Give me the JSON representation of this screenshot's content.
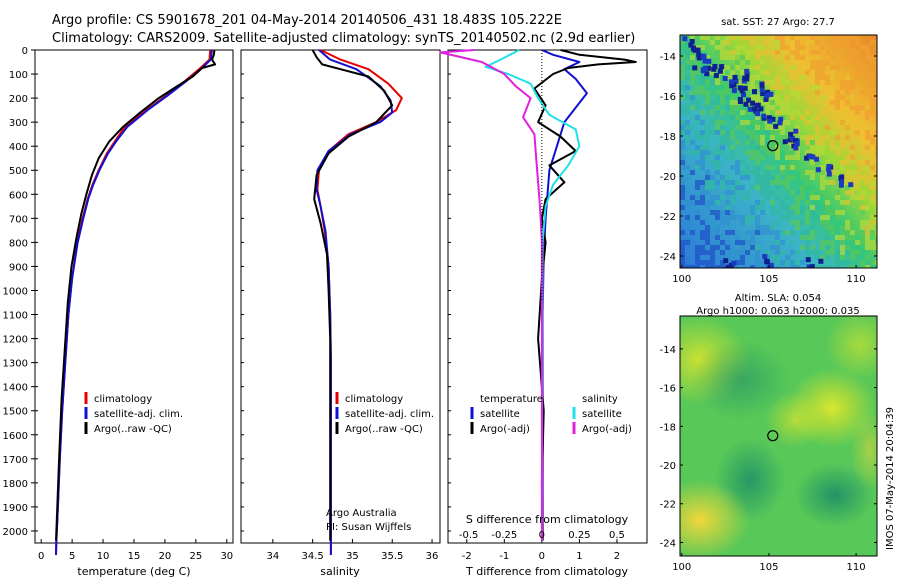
{
  "header": {
    "line1": "Argo profile: CS 5901678_201 04-May-2014 20140506_431 18.483S 105.222E",
    "line2": "Climatology: CARS2009. Satellite-adjusted climatology: synTS_20140502.nc (2.9d earlier)"
  },
  "colors": {
    "climatology": "#e60000",
    "satellite": "#1010d0",
    "argo": "#000000",
    "cyan": "#20e0e8",
    "magenta": "#e020e0"
  },
  "depth_axis": {
    "ticks": [
      0,
      100,
      200,
      300,
      400,
      500,
      600,
      700,
      800,
      900,
      1000,
      1100,
      1200,
      1300,
      1400,
      1500,
      1600,
      1700,
      1800,
      1900,
      2000
    ],
    "range": [
      0,
      2050
    ]
  },
  "chart_data": [
    {
      "type": "line",
      "id": "temperature",
      "xlabel": "temperature (deg C)",
      "xlim": [
        -1,
        31
      ],
      "ylim": [
        2050,
        0
      ],
      "xticks": [
        "0",
        "5",
        "10",
        "15",
        "20",
        "25",
        "30"
      ],
      "xtick_values": [
        0,
        5,
        10,
        15,
        20,
        25,
        30
      ],
      "legend": [
        "climatology",
        "satellite-adj. clim.",
        "Argo(..raw -QC)"
      ],
      "series": [
        {
          "name": "climatology",
          "color": "#e60000",
          "x": [
            27.3,
            27.2,
            25.5,
            23.2,
            20.2,
            17.0,
            13.5,
            11.9,
            10.6,
            9.3,
            8.3,
            7.5,
            6.7,
            5.8,
            5.0,
            4.4,
            3.9,
            3.4,
            3.0,
            2.7,
            2.45,
            2.4
          ],
          "y": [
            0,
            40,
            80,
            130,
            190,
            250,
            320,
            380,
            430,
            500,
            560,
            620,
            700,
            800,
            950,
            1100,
            1300,
            1500,
            1700,
            1900,
            2050,
            2100
          ]
        },
        {
          "name": "satellite-adj. clim.",
          "color": "#1010d0",
          "x": [
            27.6,
            27.4,
            25.8,
            23.4,
            20.4,
            17.2,
            13.9,
            12.1,
            10.8,
            9.4,
            8.4,
            7.6,
            6.8,
            5.9,
            5.0,
            4.4,
            3.9,
            3.4,
            3.0,
            2.7,
            2.45,
            2.4
          ],
          "y": [
            0,
            40,
            80,
            130,
            190,
            250,
            320,
            380,
            430,
            500,
            560,
            620,
            700,
            800,
            950,
            1100,
            1300,
            1500,
            1700,
            1900,
            2050,
            2100
          ]
        },
        {
          "name": "Argo(..raw -QC)",
          "color": "#000000",
          "x": [
            28.0,
            27.9,
            27.6,
            28.1,
            26.0,
            24.5,
            22.0,
            19.0,
            16.0,
            13.2,
            11.0,
            9.3,
            8.2,
            7.3,
            6.5,
            5.7,
            4.9,
            4.3,
            3.8,
            3.3,
            2.9,
            2.6,
            2.4
          ],
          "y": [
            2,
            20,
            40,
            60,
            75,
            110,
            150,
            200,
            260,
            320,
            380,
            450,
            520,
            600,
            680,
            780,
            900,
            1050,
            1250,
            1450,
            1700,
            1900,
            2040
          ]
        }
      ]
    },
    {
      "type": "line",
      "id": "salinity",
      "xlabel": "salinity",
      "xlim": [
        33.6,
        36.1
      ],
      "ylim": [
        2050,
        0
      ],
      "xticks": [
        "34",
        "34.5",
        "35",
        "35.5",
        "36"
      ],
      "xtick_values": [
        34,
        34.5,
        35,
        35.5,
        36
      ],
      "legend": [
        "climatology",
        "satellite-adj. clim.",
        "Argo(..raw -QC)"
      ],
      "annotation": [
        "Argo Australia",
        "PI: Susan Wijffels"
      ],
      "series": [
        {
          "name": "climatology",
          "color": "#e60000",
          "x": [
            34.6,
            34.85,
            35.2,
            35.45,
            35.62,
            35.55,
            35.3,
            34.95,
            34.7,
            34.58,
            34.56,
            34.6,
            34.65,
            34.7,
            34.72,
            34.73,
            34.73,
            34.73,
            34.73,
            34.73
          ],
          "y": [
            0,
            40,
            80,
            140,
            200,
            250,
            300,
            350,
            420,
            500,
            580,
            650,
            750,
            900,
            1100,
            1300,
            1500,
            1700,
            1900,
            2100
          ]
        },
        {
          "name": "satellite-adj. clim.",
          "color": "#1010d0",
          "x": [
            34.58,
            34.72,
            35.05,
            35.35,
            35.48,
            35.5,
            35.35,
            34.98,
            34.7,
            34.56,
            34.55,
            34.6,
            34.66,
            34.7,
            34.72,
            34.73,
            34.73,
            34.73,
            34.73,
            34.73
          ],
          "y": [
            0,
            40,
            80,
            150,
            210,
            260,
            300,
            350,
            420,
            500,
            580,
            650,
            750,
            900,
            1100,
            1300,
            1500,
            1700,
            1900,
            2100
          ]
        },
        {
          "name": "Argo(..raw -QC)",
          "color": "#000000",
          "x": [
            34.5,
            34.55,
            34.62,
            34.85,
            35.2,
            35.4,
            35.5,
            35.3,
            34.95,
            34.7,
            34.55,
            34.52,
            34.6,
            34.68,
            34.7,
            34.72,
            34.72,
            34.72,
            34.72
          ],
          "y": [
            0,
            30,
            60,
            80,
            110,
            170,
            230,
            300,
            360,
            430,
            520,
            620,
            720,
            850,
            1000,
            1200,
            1400,
            1700,
            2040
          ]
        }
      ]
    },
    {
      "type": "line",
      "id": "difference",
      "xlabel": "T difference from climatology",
      "xlabel_top": "S difference from climatology",
      "xlim": [
        -2.5,
        2.8
      ],
      "ylim": [
        2050,
        0
      ],
      "xticks": [
        "-2",
        "-1",
        "0",
        "1",
        "2"
      ],
      "xtick_values": [
        -2,
        -1,
        0,
        1,
        2
      ],
      "s_ticks": [
        "-0.5",
        "-0.25",
        "0",
        "0.25",
        "0.5"
      ],
      "s_tick_values": [
        -1.95,
        -1.0,
        0,
        1.0,
        2.0
      ],
      "legend_left": [
        "temperature",
        "satellite",
        "Argo(-adj)"
      ],
      "legend_right": [
        "salinity",
        "satellite",
        "Argo(-adj)"
      ],
      "series": [
        {
          "name": "temperature satellite",
          "color": "#1010d0",
          "x": [
            0,
            0.3,
            1.0,
            0.6,
            0.9,
            1.2,
            1.0,
            0.6,
            0.4,
            0.2,
            0.15,
            0.1,
            0.05,
            0.02,
            0.02,
            0.02
          ],
          "y": [
            0,
            20,
            50,
            80,
            120,
            180,
            220,
            300,
            400,
            500,
            600,
            700,
            850,
            1100,
            1500,
            2040
          ]
        },
        {
          "name": "temperature Argo(-adj)",
          "color": "#000000",
          "x": [
            0.5,
            1.0,
            2.2,
            2.5,
            1.5,
            0.7,
            0.3,
            -0.2,
            0.1,
            -0.1,
            0.5,
            0.9,
            0.2,
            0.6,
            0.1,
            0.0,
            0.1,
            0.0,
            -0.1,
            0.05,
            0.0,
            0.02
          ],
          "y": [
            0,
            20,
            40,
            50,
            60,
            75,
            100,
            160,
            230,
            300,
            360,
            420,
            480,
            550,
            620,
            700,
            800,
            950,
            1200,
            1500,
            1800,
            2040
          ]
        },
        {
          "name": "salinity satellite",
          "color": "#20e0e8",
          "x": [
            -0.6,
            -1.1,
            -1.5,
            -0.9,
            -0.3,
            -0.1,
            0.2,
            0.9,
            1.0,
            0.7,
            0.3,
            0.1,
            0.02,
            0.01,
            0.0
          ],
          "y": [
            0,
            40,
            70,
            100,
            140,
            200,
            270,
            330,
            400,
            480,
            560,
            650,
            800,
            1200,
            2040
          ]
        },
        {
          "name": "salinity Argo(-adj)",
          "color": "#e020e0",
          "x": [
            -1.8,
            -2.7,
            -1.6,
            -1.0,
            -0.7,
            -0.3,
            -0.5,
            -0.2,
            -0.15,
            -0.1,
            -0.05,
            0.0,
            0.0
          ],
          "y": [
            0,
            10,
            50,
            100,
            150,
            200,
            280,
            350,
            450,
            550,
            650,
            800,
            2040
          ]
        }
      ]
    }
  ],
  "maps": {
    "sst": {
      "title": "sat. SST: 27 Argo: 27.7",
      "yticks": [
        "-14",
        "-16",
        "-18",
        "-20",
        "-22",
        "-24"
      ],
      "ytick_values": [
        -14,
        -16,
        -18,
        -20,
        -22,
        -24
      ],
      "xticks": [
        "100",
        "105",
        "110"
      ],
      "xtick_values": [
        100,
        105,
        110
      ],
      "marker": {
        "lon": 105.222,
        "lat": -18.483
      }
    },
    "sla": {
      "title_line1": "Altim. SLA: 0.054",
      "title_line2": "Argo h1000: 0.063 h2000: 0.035",
      "yticks": [
        "-14",
        "-16",
        "-18",
        "-20",
        "-22",
        "-24"
      ],
      "ytick_values": [
        -14,
        -16,
        -18,
        -20,
        -22,
        -24
      ],
      "xticks": [
        "100",
        "105",
        "110"
      ],
      "xtick_values": [
        100,
        105,
        110
      ],
      "marker": {
        "lon": 105.222,
        "lat": -18.483
      }
    }
  },
  "footer": {
    "stamp": "IMOS 07-May-2014 20:04:39"
  }
}
